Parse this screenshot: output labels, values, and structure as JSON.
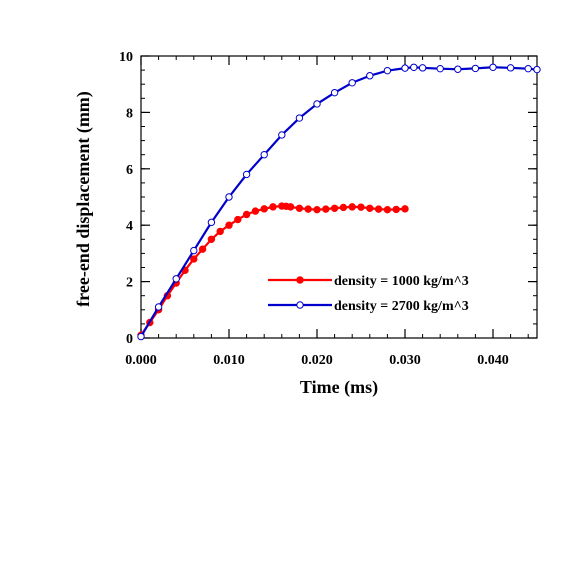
{
  "chart_data": {
    "type": "line",
    "title": "",
    "xlabel": "Time (ms)",
    "ylabel": "free-end displacement (mm)",
    "xlim": [
      0,
      0.045
    ],
    "ylim": [
      0,
      10
    ],
    "x_ticks": [
      0.0,
      0.01,
      0.02,
      0.03,
      0.04
    ],
    "x_tick_labels": [
      "0.000",
      "0.010",
      "0.020",
      "0.030",
      "0.040"
    ],
    "y_ticks": [
      0,
      2,
      4,
      6,
      8,
      10
    ],
    "y_tick_labels": [
      "0",
      "2",
      "4",
      "6",
      "8",
      "10"
    ],
    "grid": false,
    "legend_position": "bottom-right",
    "series": [
      {
        "name": "density = 1000 kg/m^3",
        "color": "#ff0000",
        "marker": "filled-circle",
        "x": [
          0.0,
          0.001,
          0.002,
          0.003,
          0.004,
          0.005,
          0.006,
          0.007,
          0.008,
          0.009,
          0.01,
          0.011,
          0.012,
          0.013,
          0.014,
          0.015,
          0.016,
          0.0165,
          0.017,
          0.018,
          0.019,
          0.02,
          0.021,
          0.022,
          0.023,
          0.024,
          0.025,
          0.026,
          0.027,
          0.028,
          0.029,
          0.03
        ],
        "values": [
          0.1,
          0.55,
          1.0,
          1.5,
          1.95,
          2.4,
          2.8,
          3.15,
          3.5,
          3.78,
          4.0,
          4.2,
          4.38,
          4.5,
          4.58,
          4.65,
          4.68,
          4.67,
          4.65,
          4.6,
          4.57,
          4.55,
          4.57,
          4.6,
          4.63,
          4.65,
          4.64,
          4.6,
          4.57,
          4.55,
          4.56,
          4.58
        ]
      },
      {
        "name": "density = 2700 kg/m^3",
        "color": "#0000cc",
        "marker": "open-circle",
        "x": [
          0.0,
          0.002,
          0.004,
          0.006,
          0.008,
          0.01,
          0.012,
          0.014,
          0.016,
          0.018,
          0.02,
          0.022,
          0.024,
          0.026,
          0.028,
          0.03,
          0.031,
          0.032,
          0.034,
          0.036,
          0.038,
          0.04,
          0.042,
          0.044,
          0.045
        ],
        "values": [
          0.05,
          1.1,
          2.1,
          3.1,
          4.1,
          5.0,
          5.8,
          6.5,
          7.2,
          7.8,
          8.3,
          8.7,
          9.05,
          9.3,
          9.48,
          9.57,
          9.6,
          9.58,
          9.55,
          9.53,
          9.56,
          9.6,
          9.58,
          9.55,
          9.52
        ]
      }
    ]
  }
}
